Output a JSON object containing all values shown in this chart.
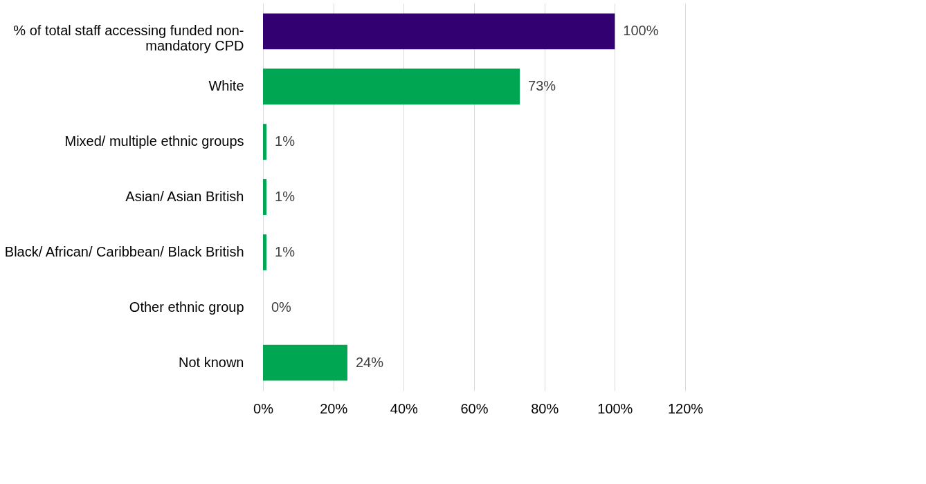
{
  "chart_data": {
    "type": "bar",
    "orientation": "horizontal",
    "categories": [
      "% of total staff accessing funded non-mandatory CPD",
      "White",
      "Mixed/ multiple ethnic groups",
      "Asian/ Asian British",
      "Black/ African/ Caribbean/ Black British",
      "Other ethnic group",
      "Not known"
    ],
    "values": [
      100,
      73,
      1,
      1,
      1,
      0,
      24
    ],
    "colors": [
      "#330072",
      "#00a651",
      "#00a651",
      "#00a651",
      "#00a651",
      "#00a651",
      "#00a651"
    ],
    "value_labels": [
      "100%",
      "73%",
      "1%",
      "1%",
      "1%",
      "0%",
      "24%"
    ],
    "xlim": [
      0,
      120
    ],
    "xticks": [
      {
        "value": 0,
        "label": "0%"
      },
      {
        "value": 20,
        "label": "20%"
      },
      {
        "value": 40,
        "label": "40%"
      },
      {
        "value": 60,
        "label": "60%"
      },
      {
        "value": 80,
        "label": "80%"
      },
      {
        "value": 100,
        "label": "100%"
      },
      {
        "value": 120,
        "label": "120%"
      }
    ],
    "grid": "x"
  }
}
